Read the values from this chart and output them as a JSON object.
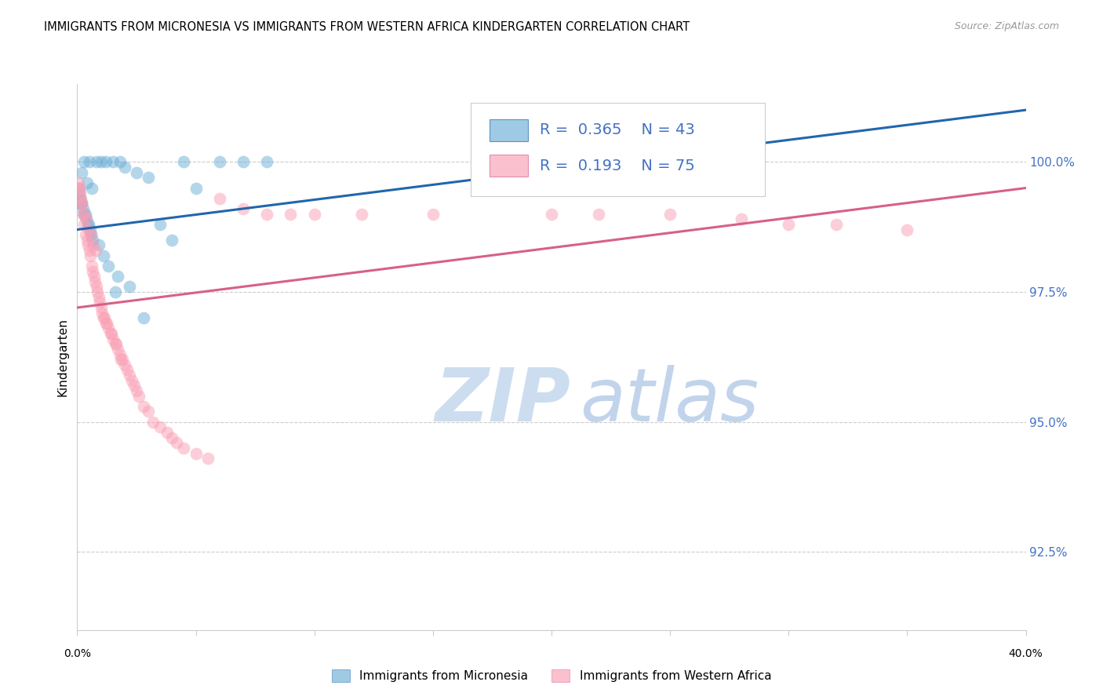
{
  "title": "IMMIGRANTS FROM MICRONESIA VS IMMIGRANTS FROM WESTERN AFRICA KINDERGARTEN CORRELATION CHART",
  "source": "Source: ZipAtlas.com",
  "ylabel": "Kindergarten",
  "yticks": [
    92.5,
    95.0,
    97.5,
    100.0
  ],
  "ytick_labels": [
    "92.5%",
    "95.0%",
    "97.5%",
    "100.0%"
  ],
  "xlim": [
    0.0,
    40.0
  ],
  "ylim": [
    91.0,
    101.5
  ],
  "legend_blue_r": "0.365",
  "legend_blue_n": "43",
  "legend_pink_r": "0.193",
  "legend_pink_n": "75",
  "blue_color": "#6baed6",
  "pink_color": "#fa9fb5",
  "blue_line_color": "#2166ac",
  "pink_line_color": "#d6608a",
  "watermark_zip": "ZIP",
  "watermark_atlas": "atlas",
  "blue_scatter_x": [
    0.3,
    0.5,
    0.8,
    1.0,
    1.2,
    1.5,
    0.2,
    0.4,
    0.6,
    1.8,
    2.0,
    2.5,
    3.0,
    4.5,
    5.0,
    0.1,
    0.15,
    0.25,
    0.35,
    0.45,
    0.55,
    0.65,
    0.9,
    1.1,
    1.3,
    1.7,
    2.2,
    3.5,
    6.0,
    7.0,
    8.0,
    0.05,
    0.08,
    0.12,
    0.18,
    0.28,
    0.38,
    0.48,
    0.58,
    1.6,
    2.8,
    4.0,
    22.0
  ],
  "blue_scatter_y": [
    100.0,
    100.0,
    100.0,
    100.0,
    100.0,
    100.0,
    99.8,
    99.6,
    99.5,
    100.0,
    99.9,
    99.8,
    99.7,
    100.0,
    99.5,
    99.3,
    99.2,
    99.1,
    99.0,
    98.8,
    98.7,
    98.5,
    98.4,
    98.2,
    98.0,
    97.8,
    97.6,
    98.8,
    100.0,
    100.0,
    100.0,
    99.5,
    99.4,
    99.3,
    99.2,
    99.0,
    98.9,
    98.8,
    98.6,
    97.5,
    97.0,
    98.5,
    100.0
  ],
  "pink_scatter_x": [
    0.1,
    0.15,
    0.2,
    0.25,
    0.3,
    0.35,
    0.4,
    0.45,
    0.5,
    0.55,
    0.6,
    0.65,
    0.7,
    0.75,
    0.8,
    0.85,
    0.9,
    0.95,
    1.0,
    1.1,
    1.2,
    1.3,
    1.4,
    1.5,
    1.6,
    1.7,
    1.8,
    1.9,
    2.0,
    2.2,
    2.4,
    2.6,
    2.8,
    3.0,
    3.5,
    4.0,
    4.5,
    5.0,
    5.5,
    0.05,
    0.08,
    0.12,
    0.18,
    0.28,
    0.38,
    0.48,
    0.58,
    0.68,
    0.78,
    1.05,
    1.15,
    1.25,
    1.45,
    1.65,
    1.85,
    2.1,
    2.3,
    2.5,
    3.2,
    3.8,
    4.2,
    6.0,
    7.0,
    8.0,
    9.0,
    10.0,
    12.0,
    15.0,
    20.0,
    25.0,
    30.0,
    35.0,
    22.0,
    28.0,
    32.0
  ],
  "pink_scatter_y": [
    99.5,
    99.3,
    99.2,
    99.0,
    98.8,
    98.6,
    98.5,
    98.4,
    98.3,
    98.2,
    98.0,
    97.9,
    97.8,
    97.7,
    97.6,
    97.5,
    97.4,
    97.3,
    97.2,
    97.0,
    96.9,
    96.8,
    96.7,
    96.6,
    96.5,
    96.4,
    96.3,
    96.2,
    96.1,
    95.9,
    95.7,
    95.5,
    95.3,
    95.2,
    94.9,
    94.7,
    94.5,
    94.4,
    94.3,
    99.6,
    99.5,
    99.4,
    99.2,
    99.0,
    98.9,
    98.7,
    98.6,
    98.4,
    98.3,
    97.1,
    97.0,
    96.9,
    96.7,
    96.5,
    96.2,
    96.0,
    95.8,
    95.6,
    95.0,
    94.8,
    94.6,
    99.3,
    99.1,
    99.0,
    99.0,
    99.0,
    99.0,
    99.0,
    99.0,
    99.0,
    98.8,
    98.7,
    99.0,
    98.9,
    98.8
  ],
  "blue_trend_x": [
    0.0,
    40.0
  ],
  "blue_trend_y": [
    98.7,
    101.0
  ],
  "pink_trend_x": [
    0.0,
    40.0
  ],
  "pink_trend_y": [
    97.2,
    99.5
  ],
  "legend_blue_label": "Immigrants from Micronesia",
  "legend_pink_label": "Immigrants from Western Africa"
}
